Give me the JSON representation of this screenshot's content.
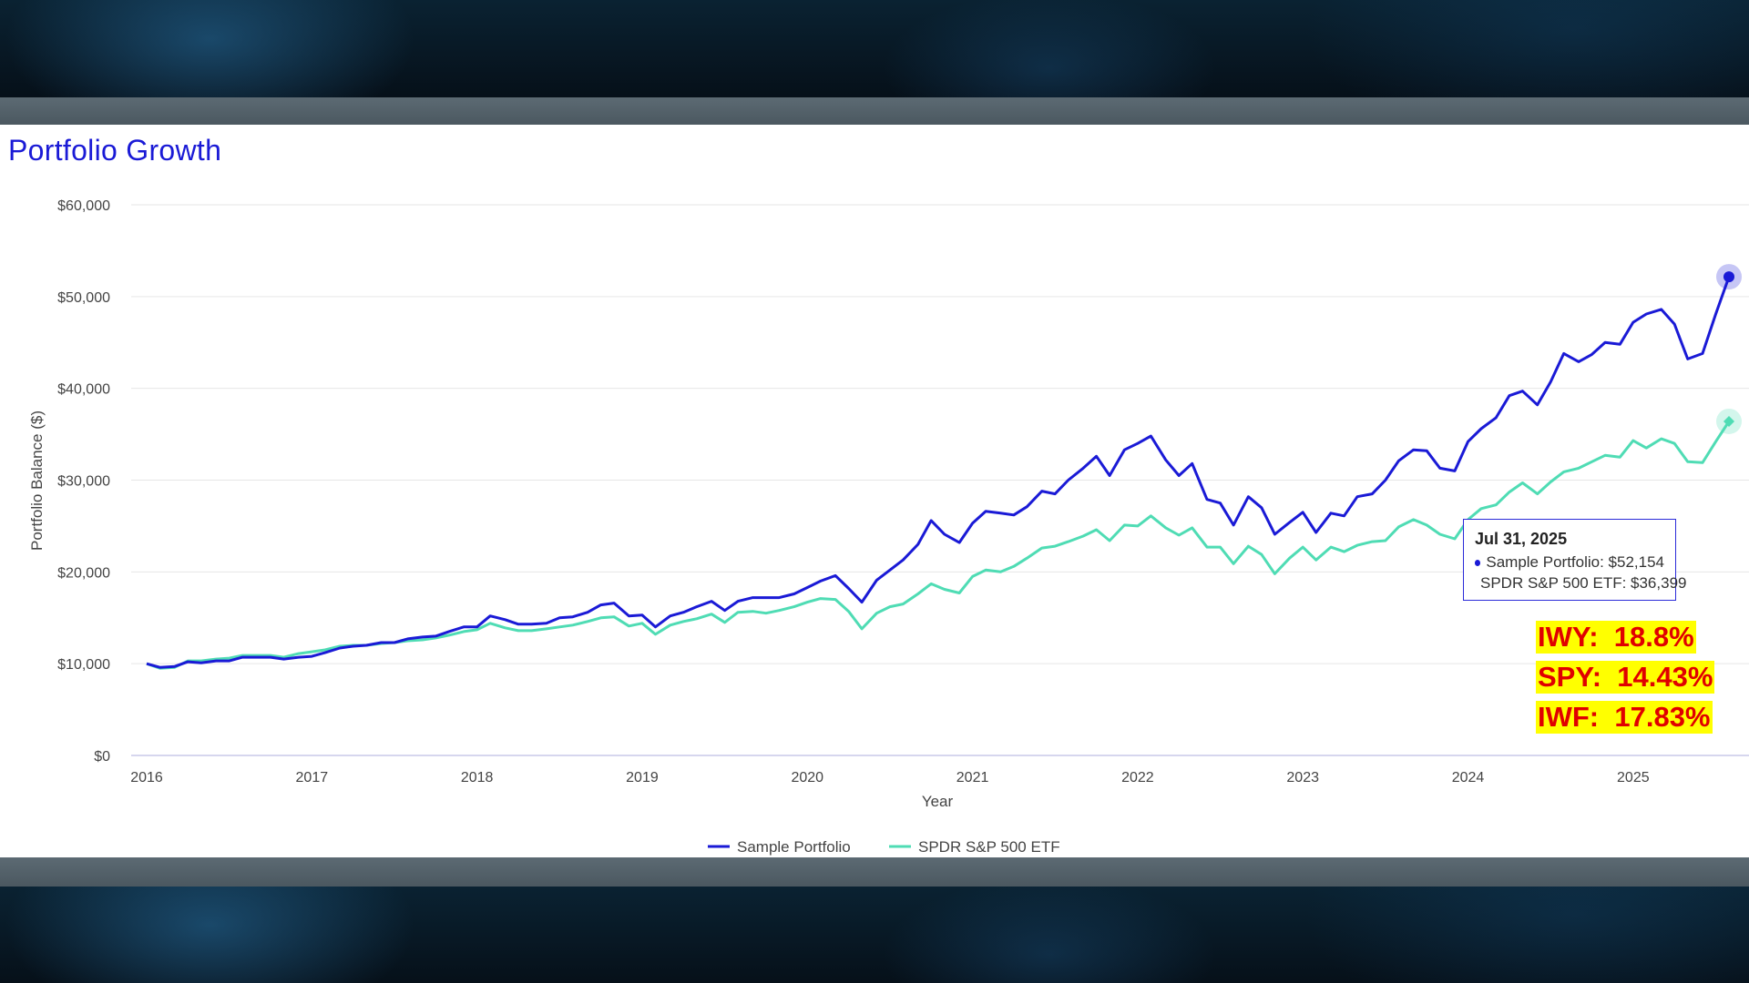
{
  "title": "Portfolio Growth",
  "colors": {
    "portfolio": "#1a1ad6",
    "etf": "#4fdcb4",
    "title": "#1a1ad6",
    "highlight_bg": "#ffff00",
    "highlight_text": "#e00000"
  },
  "tooltip": {
    "date": "Jul 31, 2025",
    "rows": [
      "Sample Portfolio: $52,154",
      "SPDR S&P 500 ETF: $36,399"
    ]
  },
  "highlights": [
    "IWY:  18.8%",
    "SPY:  14.43%",
    "IWF:  17.83%"
  ],
  "chart_data": {
    "type": "line",
    "title": "Portfolio Growth",
    "xlabel": "Year",
    "ylabel": "Portfolio Balance ($)",
    "xlim": [
      2016.0,
      2025.58
    ],
    "ylim": [
      0,
      60000
    ],
    "y_ticks": [
      0,
      10000,
      20000,
      30000,
      40000,
      50000,
      60000
    ],
    "y_tick_labels": [
      "$0",
      "$10,000",
      "$20,000",
      "$30,000",
      "$40,000",
      "$50,000",
      "$60,000"
    ],
    "x_ticks": [
      2016,
      2017,
      2018,
      2019,
      2020,
      2021,
      2022,
      2023,
      2024,
      2025
    ],
    "x_tick_labels": [
      "2016",
      "2017",
      "2018",
      "2019",
      "2020",
      "2021",
      "2022",
      "2023",
      "2024",
      "2025"
    ],
    "grid": true,
    "legend": "bottom-center",
    "series": [
      {
        "name": "Sample Portfolio",
        "points": [
          [
            2016.0,
            10000
          ],
          [
            2016.08,
            9600
          ],
          [
            2016.17,
            9700
          ],
          [
            2016.25,
            10200
          ],
          [
            2016.33,
            10100
          ],
          [
            2016.42,
            10300
          ],
          [
            2016.5,
            10300
          ],
          [
            2016.58,
            10700
          ],
          [
            2016.67,
            10700
          ],
          [
            2016.75,
            10700
          ],
          [
            2016.83,
            10500
          ],
          [
            2016.92,
            10700
          ],
          [
            2017.0,
            10800
          ],
          [
            2017.08,
            11200
          ],
          [
            2017.17,
            11700
          ],
          [
            2017.25,
            11900
          ],
          [
            2017.33,
            12000
          ],
          [
            2017.42,
            12300
          ],
          [
            2017.5,
            12300
          ],
          [
            2017.58,
            12700
          ],
          [
            2017.67,
            12900
          ],
          [
            2017.75,
            13000
          ],
          [
            2017.83,
            13500
          ],
          [
            2017.92,
            14000
          ],
          [
            2018.0,
            14000
          ],
          [
            2018.08,
            15200
          ],
          [
            2018.17,
            14800
          ],
          [
            2018.25,
            14300
          ],
          [
            2018.33,
            14300
          ],
          [
            2018.42,
            14400
          ],
          [
            2018.5,
            15000
          ],
          [
            2018.58,
            15100
          ],
          [
            2018.67,
            15600
          ],
          [
            2018.75,
            16400
          ],
          [
            2018.83,
            16600
          ],
          [
            2018.92,
            15200
          ],
          [
            2019.0,
            15300
          ],
          [
            2019.08,
            14000
          ],
          [
            2019.17,
            15200
          ],
          [
            2019.25,
            15600
          ],
          [
            2019.33,
            16200
          ],
          [
            2019.42,
            16800
          ],
          [
            2019.5,
            15800
          ],
          [
            2019.58,
            16800
          ],
          [
            2019.67,
            17200
          ],
          [
            2019.75,
            17200
          ],
          [
            2019.83,
            17200
          ],
          [
            2019.92,
            17600
          ],
          [
            2020.0,
            18300
          ],
          [
            2020.08,
            19000
          ],
          [
            2020.17,
            19600
          ],
          [
            2020.25,
            18200
          ],
          [
            2020.33,
            16700
          ],
          [
            2020.42,
            19100
          ],
          [
            2020.5,
            20200
          ],
          [
            2020.58,
            21300
          ],
          [
            2020.67,
            23000
          ],
          [
            2020.75,
            25600
          ],
          [
            2020.83,
            24100
          ],
          [
            2020.92,
            23200
          ],
          [
            2021.0,
            25300
          ],
          [
            2021.08,
            26600
          ],
          [
            2021.17,
            26400
          ],
          [
            2021.25,
            26200
          ],
          [
            2021.33,
            27100
          ],
          [
            2021.42,
            28800
          ],
          [
            2021.5,
            28500
          ],
          [
            2021.58,
            30000
          ],
          [
            2021.67,
            31300
          ],
          [
            2021.75,
            32600
          ],
          [
            2021.83,
            30500
          ],
          [
            2021.92,
            33300
          ],
          [
            2022.0,
            34000
          ],
          [
            2022.08,
            34800
          ],
          [
            2022.17,
            32200
          ],
          [
            2022.25,
            30500
          ],
          [
            2022.33,
            31800
          ],
          [
            2022.42,
            27900
          ],
          [
            2022.5,
            27500
          ],
          [
            2022.58,
            25100
          ],
          [
            2022.67,
            28200
          ],
          [
            2022.75,
            27000
          ],
          [
            2022.83,
            24100
          ],
          [
            2022.92,
            25400
          ],
          [
            2023.0,
            26500
          ],
          [
            2023.08,
            24300
          ],
          [
            2023.17,
            26400
          ],
          [
            2023.25,
            26100
          ],
          [
            2023.33,
            28200
          ],
          [
            2023.42,
            28500
          ],
          [
            2023.5,
            30000
          ],
          [
            2023.58,
            32100
          ],
          [
            2023.67,
            33300
          ],
          [
            2023.75,
            33200
          ],
          [
            2023.83,
            31300
          ],
          [
            2023.92,
            31000
          ],
          [
            2024.0,
            34200
          ],
          [
            2024.08,
            35600
          ],
          [
            2024.17,
            36800
          ],
          [
            2024.25,
            39200
          ],
          [
            2024.33,
            39700
          ],
          [
            2024.42,
            38200
          ],
          [
            2024.5,
            40700
          ],
          [
            2024.58,
            43800
          ],
          [
            2024.67,
            42900
          ],
          [
            2024.75,
            43700
          ],
          [
            2024.83,
            45000
          ],
          [
            2024.92,
            44800
          ],
          [
            2025.0,
            47200
          ],
          [
            2025.08,
            48100
          ],
          [
            2025.17,
            48600
          ],
          [
            2025.25,
            47000
          ],
          [
            2025.33,
            43200
          ],
          [
            2025.42,
            43800
          ],
          [
            2025.5,
            48100
          ],
          [
            2025.58,
            52154
          ]
        ]
      },
      {
        "name": "SPDR S&P 500 ETF",
        "points": [
          [
            2016.0,
            10000
          ],
          [
            2016.08,
            9500
          ],
          [
            2016.17,
            9600
          ],
          [
            2016.25,
            10300
          ],
          [
            2016.33,
            10300
          ],
          [
            2016.42,
            10500
          ],
          [
            2016.5,
            10600
          ],
          [
            2016.58,
            10900
          ],
          [
            2016.67,
            10900
          ],
          [
            2016.75,
            10900
          ],
          [
            2016.83,
            10700
          ],
          [
            2016.92,
            11100
          ],
          [
            2017.0,
            11300
          ],
          [
            2017.08,
            11500
          ],
          [
            2017.17,
            11900
          ],
          [
            2017.25,
            12000
          ],
          [
            2017.33,
            12000
          ],
          [
            2017.42,
            12200
          ],
          [
            2017.5,
            12300
          ],
          [
            2017.58,
            12500
          ],
          [
            2017.67,
            12600
          ],
          [
            2017.75,
            12800
          ],
          [
            2017.83,
            13100
          ],
          [
            2017.92,
            13500
          ],
          [
            2018.0,
            13700
          ],
          [
            2018.08,
            14400
          ],
          [
            2018.17,
            13900
          ],
          [
            2018.25,
            13600
          ],
          [
            2018.33,
            13600
          ],
          [
            2018.42,
            13800
          ],
          [
            2018.5,
            14000
          ],
          [
            2018.58,
            14200
          ],
          [
            2018.67,
            14600
          ],
          [
            2018.75,
            15000
          ],
          [
            2018.83,
            15100
          ],
          [
            2018.92,
            14100
          ],
          [
            2019.0,
            14400
          ],
          [
            2019.08,
            13200
          ],
          [
            2019.17,
            14200
          ],
          [
            2019.25,
            14600
          ],
          [
            2019.33,
            14900
          ],
          [
            2019.42,
            15400
          ],
          [
            2019.5,
            14500
          ],
          [
            2019.58,
            15600
          ],
          [
            2019.67,
            15700
          ],
          [
            2019.75,
            15500
          ],
          [
            2019.83,
            15800
          ],
          [
            2019.92,
            16200
          ],
          [
            2020.0,
            16700
          ],
          [
            2020.08,
            17100
          ],
          [
            2020.17,
            17000
          ],
          [
            2020.25,
            15700
          ],
          [
            2020.33,
            13800
          ],
          [
            2020.42,
            15500
          ],
          [
            2020.5,
            16200
          ],
          [
            2020.58,
            16500
          ],
          [
            2020.67,
            17600
          ],
          [
            2020.75,
            18700
          ],
          [
            2020.83,
            18100
          ],
          [
            2020.92,
            17700
          ],
          [
            2021.0,
            19500
          ],
          [
            2021.08,
            20200
          ],
          [
            2021.17,
            20000
          ],
          [
            2021.25,
            20600
          ],
          [
            2021.33,
            21500
          ],
          [
            2021.42,
            22600
          ],
          [
            2021.5,
            22800
          ],
          [
            2021.58,
            23300
          ],
          [
            2021.67,
            23900
          ],
          [
            2021.75,
            24600
          ],
          [
            2021.83,
            23400
          ],
          [
            2021.92,
            25100
          ],
          [
            2022.0,
            25000
          ],
          [
            2022.08,
            26100
          ],
          [
            2022.17,
            24800
          ],
          [
            2022.25,
            24000
          ],
          [
            2022.33,
            24800
          ],
          [
            2022.42,
            22700
          ],
          [
            2022.5,
            22700
          ],
          [
            2022.58,
            20900
          ],
          [
            2022.67,
            22800
          ],
          [
            2022.75,
            21900
          ],
          [
            2022.83,
            19800
          ],
          [
            2022.92,
            21500
          ],
          [
            2023.0,
            22700
          ],
          [
            2023.08,
            21300
          ],
          [
            2023.17,
            22700
          ],
          [
            2023.25,
            22200
          ],
          [
            2023.33,
            22900
          ],
          [
            2023.42,
            23300
          ],
          [
            2023.5,
            23400
          ],
          [
            2023.58,
            24900
          ],
          [
            2023.67,
            25700
          ],
          [
            2023.75,
            25100
          ],
          [
            2023.83,
            24100
          ],
          [
            2023.92,
            23600
          ],
          [
            2024.0,
            25700
          ],
          [
            2024.08,
            26900
          ],
          [
            2024.17,
            27300
          ],
          [
            2024.25,
            28700
          ],
          [
            2024.33,
            29700
          ],
          [
            2024.42,
            28500
          ],
          [
            2024.5,
            29800
          ],
          [
            2024.58,
            30900
          ],
          [
            2024.67,
            31300
          ],
          [
            2024.75,
            32000
          ],
          [
            2024.83,
            32700
          ],
          [
            2024.92,
            32500
          ],
          [
            2025.0,
            34300
          ],
          [
            2025.08,
            33500
          ],
          [
            2025.17,
            34500
          ],
          [
            2025.25,
            34000
          ],
          [
            2025.33,
            32000
          ],
          [
            2025.42,
            31900
          ],
          [
            2025.5,
            34200
          ],
          [
            2025.58,
            36399
          ]
        ]
      }
    ]
  }
}
